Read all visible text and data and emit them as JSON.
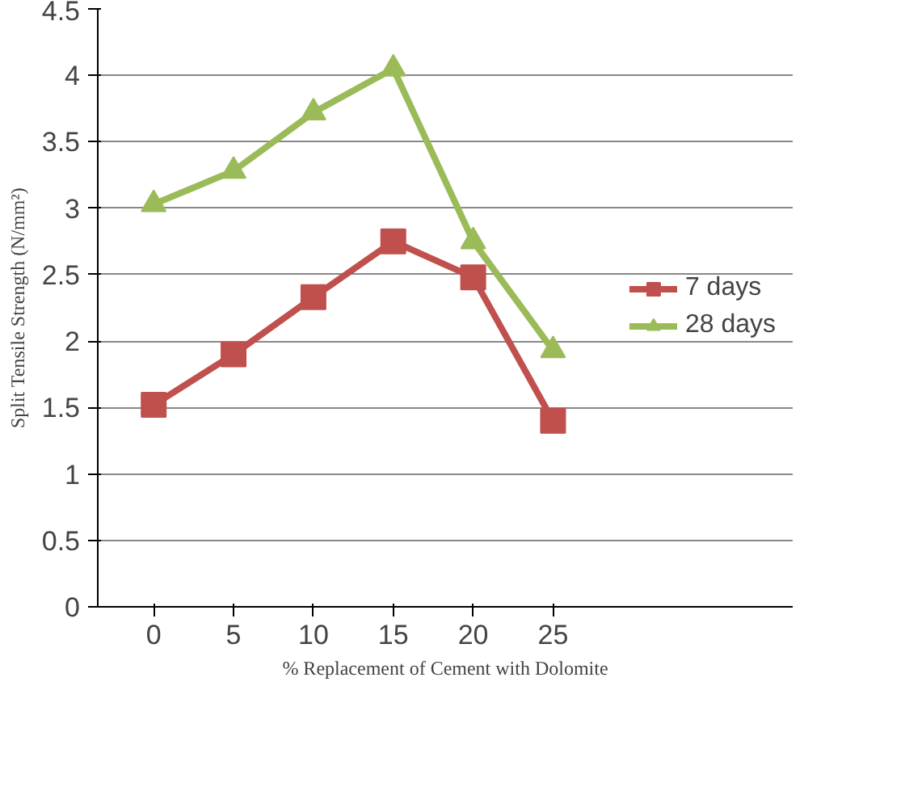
{
  "chart_data": {
    "type": "line",
    "xlabel": "% Replacement of Cement with Dolomite",
    "ylabel": "Split Tensile Strength (N/mm²)",
    "categories": [
      "0",
      "5",
      "10",
      "15",
      "20",
      "25"
    ],
    "series": [
      {
        "name": "7 days",
        "color": "#c0504d",
        "marker": "square",
        "values": [
          1.52,
          1.9,
          2.33,
          2.75,
          2.48,
          1.4
        ]
      },
      {
        "name": "28 days",
        "color": "#9bbb59",
        "marker": "triangle",
        "values": [
          3.03,
          3.28,
          3.72,
          4.05,
          2.75,
          1.93
        ]
      }
    ],
    "ylim": [
      0,
      4.5
    ],
    "yticks": [
      0,
      0.5,
      1,
      1.5,
      2,
      2.5,
      3,
      3.5,
      4,
      4.5
    ],
    "grid": "y",
    "legend": "right"
  }
}
